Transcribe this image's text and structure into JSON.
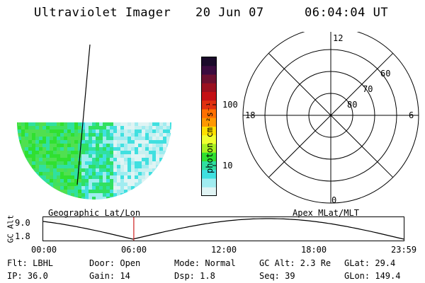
{
  "header": {
    "title": "Ultraviolet Imager",
    "date": "20 Jun 07",
    "time": "06:04:04 UT"
  },
  "map_labels": {
    "left": "Geographic Lat/Lon",
    "right": "Apex MLat/MLT"
  },
  "colorbar": {
    "unit_label": "photon cm⁻²s⁻¹",
    "ticks": [
      "100",
      "10"
    ],
    "colors": [
      "#1a0a2a",
      "#3b0b3f",
      "#6b1030",
      "#9a1020",
      "#c41015",
      "#e03010",
      "#ff7000",
      "#ff9800",
      "#ffe000",
      "#f0ff30",
      "#a8f020",
      "#30e030",
      "#30e0a0",
      "#40e0e0",
      "#a0ecf0",
      "#e0f4f4"
    ]
  },
  "polar_plot": {
    "mlt_labels": {
      "top": "12",
      "left": "18",
      "right": "6",
      "bottom": "0"
    },
    "lat_rings": [
      "60",
      "70",
      "80"
    ]
  },
  "altitude_strip": {
    "axis_label": "GC Alt",
    "y_ticks": [
      "9.0",
      "1.8"
    ],
    "x_ticks": [
      "00:00",
      "06:00",
      "12:00",
      "18:00",
      "23:59"
    ],
    "current_marker_time": "06:04",
    "alt_range": [
      1.8,
      9.0
    ],
    "colors": {
      "curve": "#000000",
      "marker": "#cc2020"
    }
  },
  "footer": {
    "row1": {
      "flt": "Flt: LBHL",
      "door": "Door: Open",
      "mode": "Mode: Normal",
      "gcalt": "GC Alt: 2.3 Re",
      "glat": "GLat:  29.4"
    },
    "row2": {
      "ip": "IP: 36.0",
      "gain": "Gain: 14",
      "dsp": "Dsp:    1.8",
      "seq": "Seq: 39",
      "glon": "GLon: 149.4"
    }
  }
}
